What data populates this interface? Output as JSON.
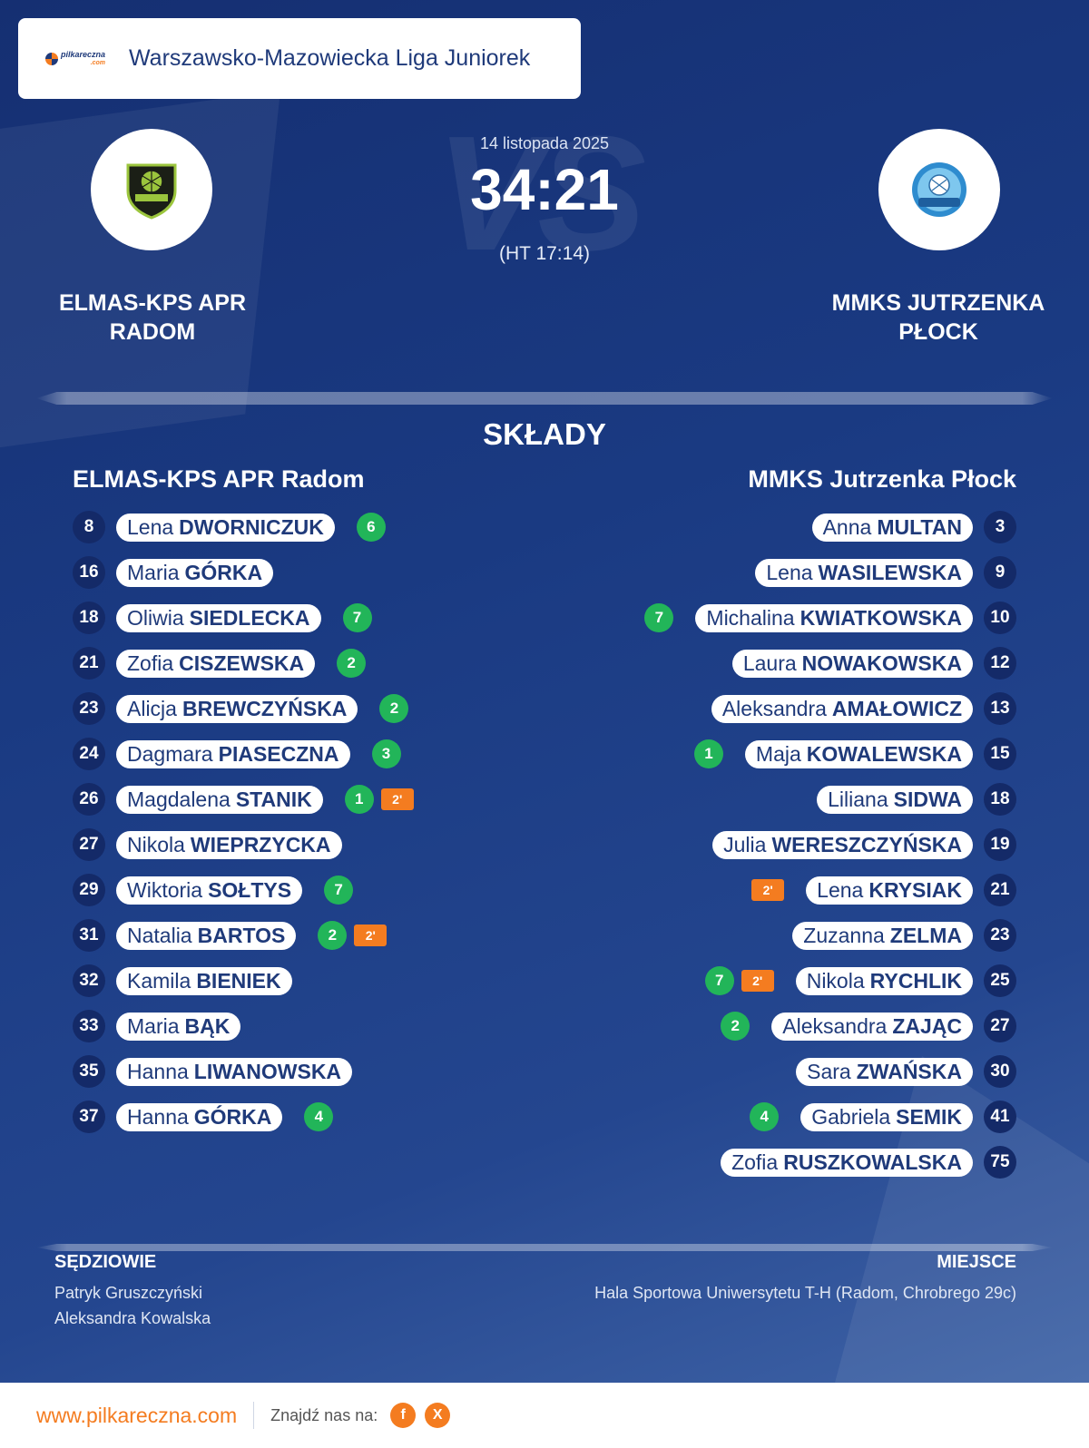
{
  "league": {
    "title": "Warszawsko-Mazowiecka Liga Juniorek",
    "logo_text": "pilkareczna",
    "logo_sub": ".com"
  },
  "match": {
    "date": "14 listopada 2025",
    "score": "34:21",
    "halftime": "(HT 17:14)",
    "vs_watermark": "VS"
  },
  "home": {
    "name_upper": "ELMAS-KPS APR RADOM",
    "name": "ELMAS-KPS APR Radom",
    "players": [
      {
        "no": "8",
        "first": "Lena",
        "last": "DWORNICZUK",
        "goals": "6",
        "susp": ""
      },
      {
        "no": "16",
        "first": "Maria",
        "last": "GÓRKA",
        "goals": "",
        "susp": ""
      },
      {
        "no": "18",
        "first": "Oliwia",
        "last": "SIEDLECKA",
        "goals": "7",
        "susp": ""
      },
      {
        "no": "21",
        "first": "Zofia",
        "last": "CISZEWSKA",
        "goals": "2",
        "susp": ""
      },
      {
        "no": "23",
        "first": "Alicja",
        "last": "BREWCZYŃSKA",
        "goals": "2",
        "susp": ""
      },
      {
        "no": "24",
        "first": "Dagmara",
        "last": "PIASECZNA",
        "goals": "3",
        "susp": ""
      },
      {
        "no": "26",
        "first": "Magdalena",
        "last": "STANIK",
        "goals": "1",
        "susp": "2'"
      },
      {
        "no": "27",
        "first": "Nikola",
        "last": "WIEPRZYCKA",
        "goals": "",
        "susp": ""
      },
      {
        "no": "29",
        "first": "Wiktoria",
        "last": "SOŁTYS",
        "goals": "7",
        "susp": ""
      },
      {
        "no": "31",
        "first": "Natalia",
        "last": "BARTOS",
        "goals": "2",
        "susp": "2'"
      },
      {
        "no": "32",
        "first": "Kamila",
        "last": "BIENIEK",
        "goals": "",
        "susp": ""
      },
      {
        "no": "33",
        "first": "Maria",
        "last": "BĄK",
        "goals": "",
        "susp": ""
      },
      {
        "no": "35",
        "first": "Hanna",
        "last": "LIWANOWSKA",
        "goals": "",
        "susp": ""
      },
      {
        "no": "37",
        "first": "Hanna",
        "last": "GÓRKA",
        "goals": "4",
        "susp": ""
      }
    ]
  },
  "away": {
    "name_upper": "MMKS JUTRZENKA PŁOCK",
    "name": "MMKS Jutrzenka Płock",
    "players": [
      {
        "no": "3",
        "first": "Anna",
        "last": "MULTAN",
        "goals": "",
        "susp": ""
      },
      {
        "no": "9",
        "first": "Lena",
        "last": "WASILEWSKA",
        "goals": "",
        "susp": ""
      },
      {
        "no": "10",
        "first": "Michalina",
        "last": "KWIATKOWSKA",
        "goals": "7",
        "susp": ""
      },
      {
        "no": "12",
        "first": "Laura",
        "last": "NOWAKOWSKA",
        "goals": "",
        "susp": ""
      },
      {
        "no": "13",
        "first": "Aleksandra",
        "last": "AMAŁOWICZ",
        "goals": "",
        "susp": ""
      },
      {
        "no": "15",
        "first": "Maja",
        "last": "KOWALEWSKA",
        "goals": "1",
        "susp": ""
      },
      {
        "no": "18",
        "first": "Liliana",
        "last": "SIDWA",
        "goals": "",
        "susp": ""
      },
      {
        "no": "19",
        "first": "Julia",
        "last": "WERESZCZYŃSKA",
        "goals": "",
        "susp": ""
      },
      {
        "no": "21",
        "first": "Lena",
        "last": "KRYSIAK",
        "goals": "",
        "susp": "2'"
      },
      {
        "no": "23",
        "first": "Zuzanna",
        "last": "ZELMA",
        "goals": "",
        "susp": ""
      },
      {
        "no": "25",
        "first": "Nikola",
        "last": "RYCHLIK",
        "goals": "7",
        "susp": "2'"
      },
      {
        "no": "27",
        "first": "Aleksandra",
        "last": "ZAJĄC",
        "goals": "2",
        "susp": ""
      },
      {
        "no": "30",
        "first": "Sara",
        "last": "ZWAŃSKA",
        "goals": "",
        "susp": ""
      },
      {
        "no": "41",
        "first": "Gabriela",
        "last": "SEMIK",
        "goals": "4",
        "susp": ""
      },
      {
        "no": "75",
        "first": "Zofia",
        "last": "RUSZKOWALSKA",
        "goals": "",
        "susp": ""
      }
    ]
  },
  "section_title": "SKŁADY",
  "referees": {
    "label": "SĘDZIOWIE",
    "names": [
      "Patryk Gruszczyński",
      "Aleksandra Kowalska"
    ]
  },
  "venue": {
    "label": "MIEJSCE",
    "text": "Hala Sportowa Uniwersytetu T-H (Radom, Chrobrego 29c)"
  },
  "footer": {
    "site": "www.pilkareczna.com",
    "find_us": "Znajdź nas na:",
    "social": [
      "f",
      "X"
    ]
  },
  "colors": {
    "navy": "#1f3a7a",
    "orange": "#f47c20",
    "goal_green": "#22b559"
  }
}
